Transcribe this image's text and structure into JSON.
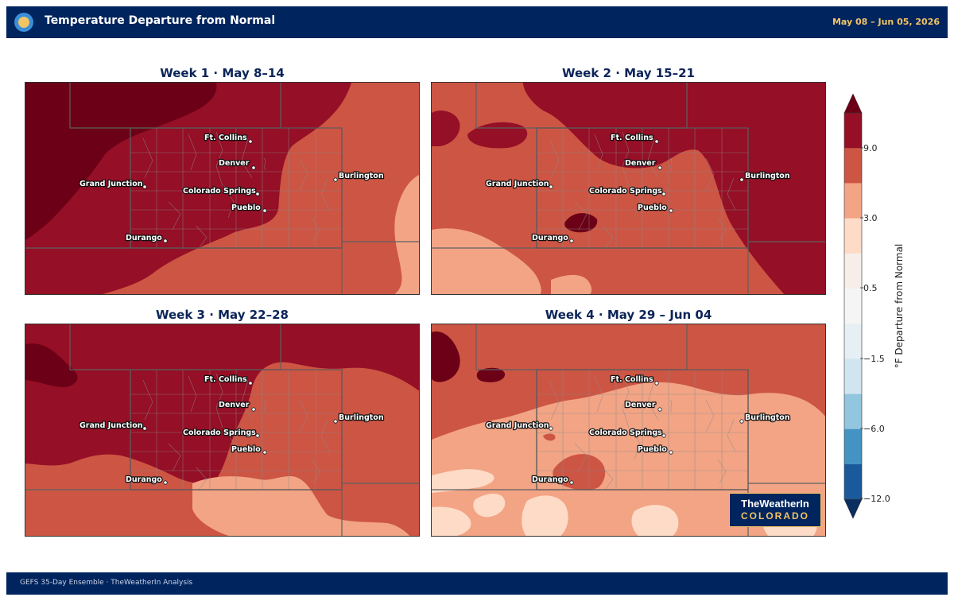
{
  "header": {
    "title": "Temperature Departure from Normal",
    "date_range": "May 08 – Jun 05, 2026"
  },
  "panels": [
    {
      "title": "Week 1  ·  May 8–14",
      "pattern": "week1"
    },
    {
      "title": "Week 2  ·  May 15–21",
      "pattern": "week2"
    },
    {
      "title": "Week 3  ·  May 22–28",
      "pattern": "week3"
    },
    {
      "title": "Week 4  ·  May 29 – Jun 04",
      "pattern": "week4"
    }
  ],
  "cities": [
    {
      "name": "Ft. Collins"
    },
    {
      "name": "Denver"
    },
    {
      "name": "Burlington"
    },
    {
      "name": "Grand Junction"
    },
    {
      "name": "Colorado Springs"
    },
    {
      "name": "Pueblo"
    },
    {
      "name": "Durango"
    }
  ],
  "colorbar": {
    "label": "°F Departure from Normal",
    "ticks": [
      "9.0",
      "3.0",
      "0.5",
      "−1.5",
      "−6.0",
      "−12.0"
    ],
    "colors": [
      "#6b0016",
      "#950f26",
      "#cd5544",
      "#f2a485",
      "#fddbc7",
      "#f7eeea",
      "#f5f5f5",
      "#e6eff4",
      "#d1e5f0",
      "#92c5de",
      "#4393c3",
      "#1a5a9c",
      "#0b2e5e"
    ]
  },
  "brand": {
    "line1": "TheWeatherIn",
    "line2": "COLORADO"
  },
  "footer": {
    "text": "GEFS 35-Day Ensemble  ·  TheWeatherIn Analysis"
  }
}
